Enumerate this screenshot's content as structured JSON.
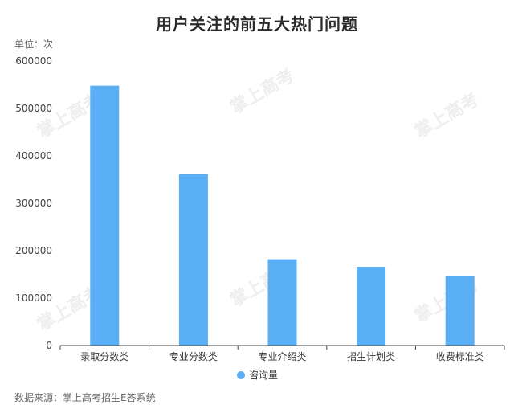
{
  "page": {
    "title": "用户关注的前五大热门问题",
    "unit": "单位：次",
    "source": "数据来源：掌上高考招生E答系统",
    "watermark": "掌上高考"
  },
  "colors": {
    "bar": "#5aaef3",
    "axis": "#444444",
    "text": "#333333"
  },
  "chart_data": {
    "type": "bar",
    "title": "用户关注的前五大热门问题",
    "xlabel": "",
    "ylabel": "单位：次",
    "ylim": [
      0,
      600000
    ],
    "yticks": [
      0,
      100000,
      200000,
      300000,
      400000,
      500000,
      600000
    ],
    "grid": false,
    "legend": "bottom",
    "categories": [
      "录取分数类",
      "专业分数类",
      "专业介绍类",
      "招生计划类",
      "收费标准类"
    ],
    "series": [
      {
        "name": "咨询量",
        "values": [
          548000,
          362000,
          182000,
          166000,
          146000
        ]
      }
    ]
  }
}
